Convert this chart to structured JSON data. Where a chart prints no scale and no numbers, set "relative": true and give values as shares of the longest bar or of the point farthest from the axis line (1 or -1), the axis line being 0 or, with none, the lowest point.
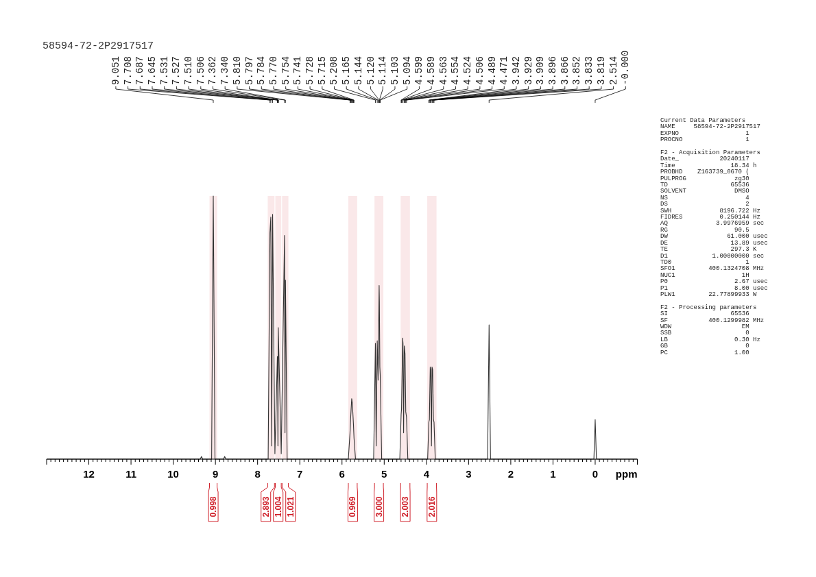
{
  "chart_data": {
    "type": "line",
    "title": "58594-72-2P2917517",
    "xlabel": "ppm",
    "relative": true,
    "color": "#333333",
    "x": [
      13,
      9.36,
      9.33,
      9.3,
      9.09,
      9.051,
      9.01,
      8.81,
      8.78,
      8.75,
      7.75,
      7.708,
      7.687,
      7.666,
      7.645,
      7.59,
      7.531,
      7.527,
      7.518,
      7.51,
      7.506,
      7.44,
      7.362,
      7.351,
      7.34,
      7.3,
      5.85,
      5.81,
      5.797,
      5.784,
      5.77,
      5.754,
      5.741,
      5.728,
      5.715,
      5.68,
      5.25,
      5.208,
      5.19,
      5.165,
      5.144,
      5.12,
      5.114,
      5.103,
      5.094,
      5.06,
      4.63,
      4.599,
      4.589,
      4.563,
      4.554,
      4.54,
      4.524,
      4.506,
      4.489,
      4.471,
      4.44,
      3.97,
      3.942,
      3.929,
      3.909,
      3.896,
      3.88,
      3.866,
      3.852,
      3.833,
      3.819,
      3.79,
      2.55,
      2.514,
      2.48,
      0.03,
      0,
      -0.03,
      -1
    ],
    "values": [
      0,
      0,
      0.01,
      0,
      0,
      1,
      0,
      0,
      0.01,
      0,
      0,
      0.86,
      0.92,
      0.05,
      0.93,
      0.02,
      0.39,
      0.37,
      0.05,
      0.5,
      0.47,
      0.02,
      0.85,
      0.1,
      0.68,
      0,
      0,
      0.1,
      0.15,
      0.19,
      0.23,
      0.21,
      0.17,
      0.13,
      0.08,
      0,
      0,
      0.44,
      0.05,
      0.45,
      0.3,
      0.66,
      0.6,
      0.35,
      0.32,
      0,
      0,
      0.17,
      0.19,
      0.46,
      0.44,
      0.1,
      0.43,
      0.4,
      0.18,
      0.16,
      0,
      0,
      0.14,
      0.15,
      0.35,
      0.34,
      0.05,
      0.35,
      0.34,
      0.15,
      0.14,
      0,
      0,
      0.51,
      0,
      0,
      0.15,
      0,
      0
    ],
    "xlim": [
      13,
      -1
    ],
    "xticks": [
      {
        "value": 13,
        "label": null
      },
      {
        "value": 12.9,
        "label": null
      },
      {
        "value": 12.8,
        "label": null
      },
      {
        "value": 12.7,
        "label": null
      },
      {
        "value": 12.6,
        "label": null
      },
      {
        "value": 12.5,
        "label": null
      },
      {
        "value": 12.4,
        "label": null
      },
      {
        "value": 12.3,
        "label": null
      },
      {
        "value": 12.2,
        "label": null
      },
      {
        "value": 12.1,
        "label": null
      },
      12,
      {
        "value": 11.9,
        "label": null
      },
      {
        "value": 11.8,
        "label": null
      },
      {
        "value": 11.7,
        "label": null
      },
      {
        "value": 11.6,
        "label": null
      },
      {
        "value": 11.5,
        "label": null
      },
      {
        "value": 11.4,
        "label": null
      },
      {
        "value": 11.3,
        "label": null
      },
      {
        "value": 11.2,
        "label": null
      },
      {
        "value": 11.1,
        "label": null
      },
      11,
      {
        "value": 10.9,
        "label": null
      },
      {
        "value": 10.8,
        "label": null
      },
      {
        "value": 10.7,
        "label": null
      },
      {
        "value": 10.6,
        "label": null
      },
      {
        "value": 10.5,
        "label": null
      },
      {
        "value": 10.4,
        "label": null
      },
      {
        "value": 10.3,
        "label": null
      },
      {
        "value": 10.2,
        "label": null
      },
      {
        "value": 10.1,
        "label": null
      },
      10,
      {
        "value": 9.9,
        "label": null
      },
      {
        "value": 9.8,
        "label": null
      },
      {
        "value": 9.7,
        "label": null
      },
      {
        "value": 9.6,
        "label": null
      },
      {
        "value": 9.5,
        "label": null
      },
      {
        "value": 9.4,
        "label": null
      },
      {
        "value": 9.3,
        "label": null
      },
      {
        "value": 9.2,
        "label": null
      },
      {
        "value": 9.1,
        "label": null
      },
      9,
      {
        "value": 8.9,
        "label": null
      },
      {
        "value": 8.8,
        "label": null
      },
      {
        "value": 8.7,
        "label": null
      },
      {
        "value": 8.6,
        "label": null
      },
      {
        "value": 8.5,
        "label": null
      },
      {
        "value": 8.4,
        "label": null
      },
      {
        "value": 8.3,
        "label": null
      },
      {
        "value": 8.2,
        "label": null
      },
      {
        "value": 8.1,
        "label": null
      },
      8,
      {
        "value": 7.9,
        "label": null
      },
      {
        "value": 7.8,
        "label": null
      },
      {
        "value": 7.7,
        "label": null
      },
      {
        "value": 7.6,
        "label": null
      },
      {
        "value": 7.5,
        "label": null
      },
      {
        "value": 7.4,
        "label": null
      },
      {
        "value": 7.3,
        "label": null
      },
      {
        "value": 7.2,
        "label": null
      },
      {
        "value": 7.1,
        "label": null
      },
      7,
      {
        "value": 6.9,
        "label": null
      },
      {
        "value": 6.8,
        "label": null
      },
      {
        "value": 6.7,
        "label": null
      },
      {
        "value": 6.6,
        "label": null
      },
      {
        "value": 6.5,
        "label": null
      },
      {
        "value": 6.4,
        "label": null
      },
      {
        "value": 6.3,
        "label": null
      },
      {
        "value": 6.2,
        "label": null
      },
      {
        "value": 6.1,
        "label": null
      },
      6,
      {
        "value": 5.9,
        "label": null
      },
      {
        "value": 5.8,
        "label": null
      },
      {
        "value": 5.7,
        "label": null
      },
      {
        "value": 5.6,
        "label": null
      },
      {
        "value": 5.5,
        "label": null
      },
      {
        "value": 5.4,
        "label": null
      },
      {
        "value": 5.3,
        "label": null
      },
      {
        "value": 5.2,
        "label": null
      },
      {
        "value": 5.1,
        "label": null
      },
      5,
      {
        "value": 4.9,
        "label": null
      },
      {
        "value": 4.8,
        "label": null
      },
      {
        "value": 4.7,
        "label": null
      },
      {
        "value": 4.6,
        "label": null
      },
      {
        "value": 4.5,
        "label": null
      },
      {
        "value": 4.4,
        "label": null
      },
      {
        "value": 4.3,
        "label": null
      },
      {
        "value": 4.2,
        "label": null
      },
      {
        "value": 4.1,
        "label": null
      },
      4,
      {
        "value": 3.9,
        "label": null
      },
      {
        "value": 3.8,
        "label": null
      },
      {
        "value": 3.7,
        "label": null
      },
      {
        "value": 3.6,
        "label": null
      },
      {
        "value": 3.5,
        "label": null
      },
      {
        "value": 3.4,
        "label": null
      },
      {
        "value": 3.3,
        "label": null
      },
      {
        "value": 3.2,
        "label": null
      },
      {
        "value": 3.1,
        "label": null
      },
      3,
      {
        "value": 2.9,
        "label": null
      },
      {
        "value": 2.8,
        "label": null
      },
      {
        "value": 2.7,
        "label": null
      },
      {
        "value": 2.6,
        "label": null
      },
      {
        "value": 2.5,
        "label": null
      },
      {
        "value": 2.4,
        "label": null
      },
      {
        "value": 2.3,
        "label": null
      },
      {
        "value": 2.2,
        "label": null
      },
      {
        "value": 2.1,
        "label": null
      },
      2,
      {
        "value": 1.9,
        "label": null
      },
      {
        "value": 1.8,
        "label": null
      },
      {
        "value": 1.7,
        "label": null
      },
      {
        "value": 1.6,
        "label": null
      },
      {
        "value": 1.5,
        "label": null
      },
      {
        "value": 1.4,
        "label": null
      },
      {
        "value": 1.3,
        "label": null
      },
      {
        "value": 1.2,
        "label": null
      },
      {
        "value": 1.1,
        "label": null
      },
      1,
      {
        "value": 0.9,
        "label": null
      },
      {
        "value": 0.8,
        "label": null
      },
      {
        "value": 0.7,
        "label": null
      },
      {
        "value": 0.6,
        "label": null
      },
      {
        "value": 0.5,
        "label": null
      },
      {
        "value": 0.4,
        "label": null
      },
      {
        "value": 0.3,
        "label": null
      },
      {
        "value": 0.2,
        "label": null
      },
      {
        "value": 0.1,
        "label": null
      },
      0,
      {
        "value": -0.1,
        "label": null
      },
      {
        "value": -0.2,
        "label": null
      },
      {
        "value": -0.3,
        "label": null
      },
      {
        "value": -0.4,
        "label": null
      },
      {
        "value": -0.5,
        "label": null
      },
      {
        "value": -0.6,
        "label": null
      },
      {
        "value": -0.7,
        "label": null
      },
      {
        "value": -0.8,
        "label": null
      },
      {
        "value": -0.9,
        "label": null
      },
      {
        "value": -1,
        "label": null
      }
    ],
    "bands": [
      {
        "axis": "x",
        "from": 9.14,
        "to": 8.96,
        "label": "0.998",
        "color": "#d0202a"
      },
      {
        "axis": "x",
        "from": 7.76,
        "to": 7.6,
        "label": "2.893",
        "color": "#d0202a"
      },
      {
        "axis": "x",
        "from": 7.58,
        "to": 7.44,
        "label": "1.004",
        "color": "#d0202a"
      },
      {
        "axis": "x",
        "from": 7.42,
        "to": 7.27,
        "label": "1.021",
        "color": "#d0202a"
      },
      {
        "axis": "x",
        "from": 5.85,
        "to": 5.64,
        "label": "0.969",
        "color": "#d0202a"
      },
      {
        "axis": "x",
        "from": 5.23,
        "to": 5.02,
        "label": "3.000",
        "color": "#d0202a"
      },
      {
        "axis": "x",
        "from": 4.61,
        "to": 4.39,
        "label": "2.003",
        "color": "#d0202a"
      },
      {
        "axis": "x",
        "from": 3.98,
        "to": 3.76,
        "label": "2.016",
        "color": "#d0202a"
      }
    ],
    "annotations": [
      {
        "text": "9.051",
        "x": 9.051
      },
      {
        "text": "7.708",
        "x": 7.708
      },
      {
        "text": "7.687",
        "x": 7.687
      },
      {
        "text": "7.645",
        "x": 7.645
      },
      {
        "text": "7.531",
        "x": 7.531
      },
      {
        "text": "7.527",
        "x": 7.527
      },
      {
        "text": "7.510",
        "x": 7.51
      },
      {
        "text": "7.506",
        "x": 7.506
      },
      {
        "text": "7.362",
        "x": 7.362
      },
      {
        "text": "7.340",
        "x": 7.34
      },
      {
        "text": "5.810",
        "x": 5.81
      },
      {
        "text": "5.797",
        "x": 5.797
      },
      {
        "text": "5.784",
        "x": 5.784
      },
      {
        "text": "5.770",
        "x": 5.77
      },
      {
        "text": "5.754",
        "x": 5.754
      },
      {
        "text": "5.741",
        "x": 5.741
      },
      {
        "text": "5.728",
        "x": 5.728
      },
      {
        "text": "5.715",
        "x": 5.715
      },
      {
        "text": "5.208",
        "x": 5.208
      },
      {
        "text": "5.165",
        "x": 5.165
      },
      {
        "text": "5.144",
        "x": 5.144
      },
      {
        "text": "5.120",
        "x": 5.12
      },
      {
        "text": "5.114",
        "x": 5.114
      },
      {
        "text": "5.103",
        "x": 5.103
      },
      {
        "text": "5.094",
        "x": 5.094
      },
      {
        "text": "4.599",
        "x": 4.599
      },
      {
        "text": "4.589",
        "x": 4.589
      },
      {
        "text": "4.563",
        "x": 4.563
      },
      {
        "text": "4.554",
        "x": 4.554
      },
      {
        "text": "4.524",
        "x": 4.524
      },
      {
        "text": "4.506",
        "x": 4.506
      },
      {
        "text": "4.489",
        "x": 4.489
      },
      {
        "text": "4.471",
        "x": 4.471
      },
      {
        "text": "3.942",
        "x": 3.942
      },
      {
        "text": "3.929",
        "x": 3.929
      },
      {
        "text": "3.909",
        "x": 3.909
      },
      {
        "text": "3.896",
        "x": 3.896
      },
      {
        "text": "3.866",
        "x": 3.866
      },
      {
        "text": "3.852",
        "x": 3.852
      },
      {
        "text": "3.833",
        "x": 3.833
      },
      {
        "text": "3.819",
        "x": 3.819
      },
      {
        "text": "2.514",
        "x": 2.514
      },
      {
        "text": "-0.000",
        "x": 0
      },
      "Current Data Parameters\nNAME     58594-72-2P2917517\nEXPNO                  1\nPROCNO                 1",
      "F2 - Acquisition Parameters\nDate_           20240117\nTime               18.34 h\nPROBHD    Z163739_0670 (\nPULPROG             zg30\nTD                 65536\nSOLVENT             DMSO\nNS                     4\nDS                     2\nSWH             8196.722 Hz\nFIDRES          0.250144 Hz\nAQ             3.9976959 sec\nRG                  90.5\nDW                61.000 usec\nDE                 13.89 usec\nTE                 297.3 K\nD1            1.00000000 sec\nTD0                    1\nSFO1         400.1324708 MHz\nNUC1                  1H\nP0                  2.67 usec\nP1                  8.00 usec\nPLW1         22.77899933 W",
      "F2 - Processing parameters\nSI                 65536\nSF           400.1299982 MHz\nWDW                   EM\nSSB                    0\nLB                  0.30 Hz\nGB                     0\nPC                  1.00"
    ]
  }
}
